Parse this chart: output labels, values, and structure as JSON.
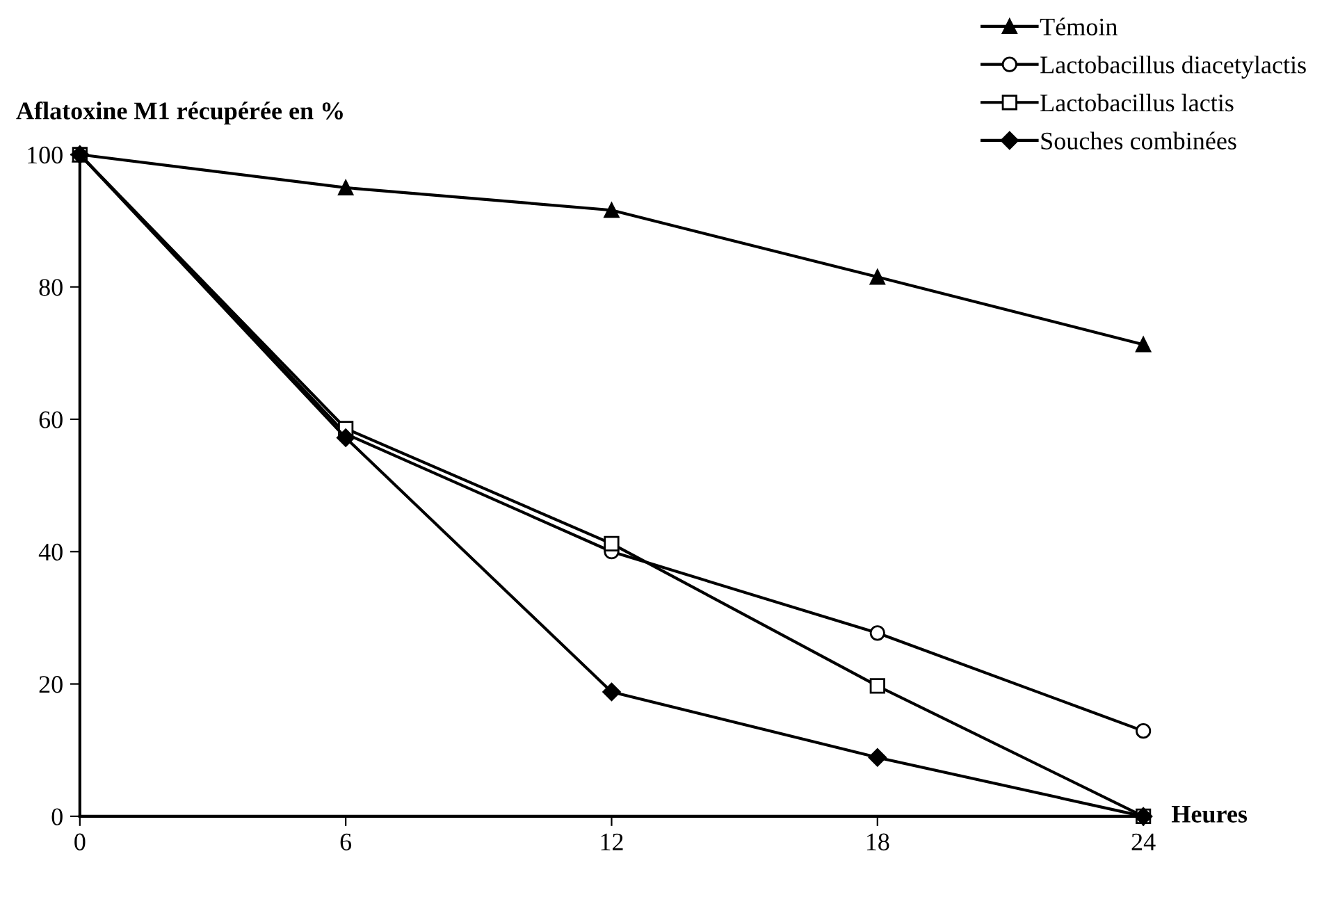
{
  "chart_data": {
    "type": "line",
    "ylabel": "Aflatoxine M1 récupérée en %",
    "xlabel": "Heures",
    "x": [
      0,
      6,
      12,
      18,
      24
    ],
    "xlim": [
      0,
      24
    ],
    "xticks": [
      0,
      6,
      12,
      18,
      24
    ],
    "ylim": [
      0,
      100
    ],
    "yticks": [
      0,
      20,
      40,
      60,
      80,
      100
    ],
    "grid": false,
    "legend": "top right",
    "line_style": "solid",
    "series": [
      {
        "name": "Témoin",
        "color": "#000000",
        "marker": "triangle",
        "values": [
          100,
          95.0,
          91.6,
          81.5,
          71.3
        ]
      },
      {
        "name": "Lactobacillus diacetylactis",
        "color": "#000000",
        "marker": "circle",
        "values": [
          100,
          57.8,
          40.0,
          27.7,
          12.9
        ]
      },
      {
        "name": "Lactobacillus lactis",
        "color": "#000000",
        "marker": "square",
        "values": [
          100,
          58.6,
          41.2,
          19.7,
          0
        ]
      },
      {
        "name": "Souches combinées",
        "color": "#000000",
        "marker": "diamond",
        "values": [
          100,
          57.2,
          18.8,
          8.9,
          0
        ]
      }
    ]
  }
}
